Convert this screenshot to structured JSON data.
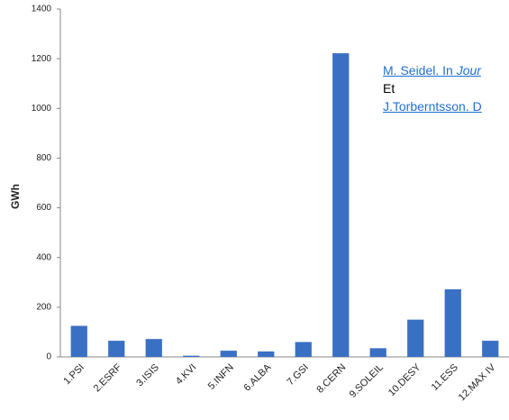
{
  "chart_data": {
    "type": "bar",
    "y_label": "GWh",
    "categories": [
      "1.PSI",
      "2.ESRF",
      "3.ISIS",
      "4.KVI",
      "5.INFN",
      "6.ALBA",
      "7.GSI",
      "8.CERN",
      "9.SOLEIL",
      "10.DESY",
      "11.ESS",
      "12.MAX IV"
    ],
    "values": [
      125,
      65,
      72,
      5,
      25,
      22,
      60,
      1222,
      35,
      150,
      272,
      65
    ],
    "color": "#3a70c4",
    "ylim": [
      0,
      1400
    ],
    "yticks": [
      0,
      200,
      400,
      600,
      800,
      1000,
      1200,
      1400
    ],
    "grid": false
  },
  "reference_box": {
    "link1": "M. Seidel. In ",
    "link1_italic": "Jour",
    "middle": "Et",
    "link2": "J.Torberntsson. D"
  }
}
